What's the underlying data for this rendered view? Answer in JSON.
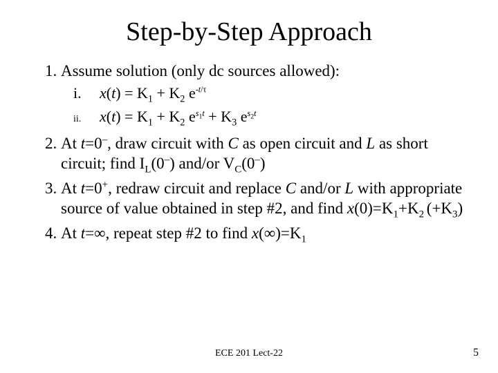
{
  "title": "Step-by-Step Approach",
  "items": {
    "n1": "Assume solution (only dc sources allowed):",
    "sub_i_marker": "i.",
    "sub_ii_marker": "ii."
  },
  "footer": "ECE 201 Lect-22",
  "page": "5",
  "colors": {
    "bg": "#ffffff",
    "text": "#000000"
  },
  "typography": {
    "title_fontsize": 38,
    "body_fontsize": 23,
    "footer_fontsize": 14,
    "font_family": "Times New Roman"
  }
}
